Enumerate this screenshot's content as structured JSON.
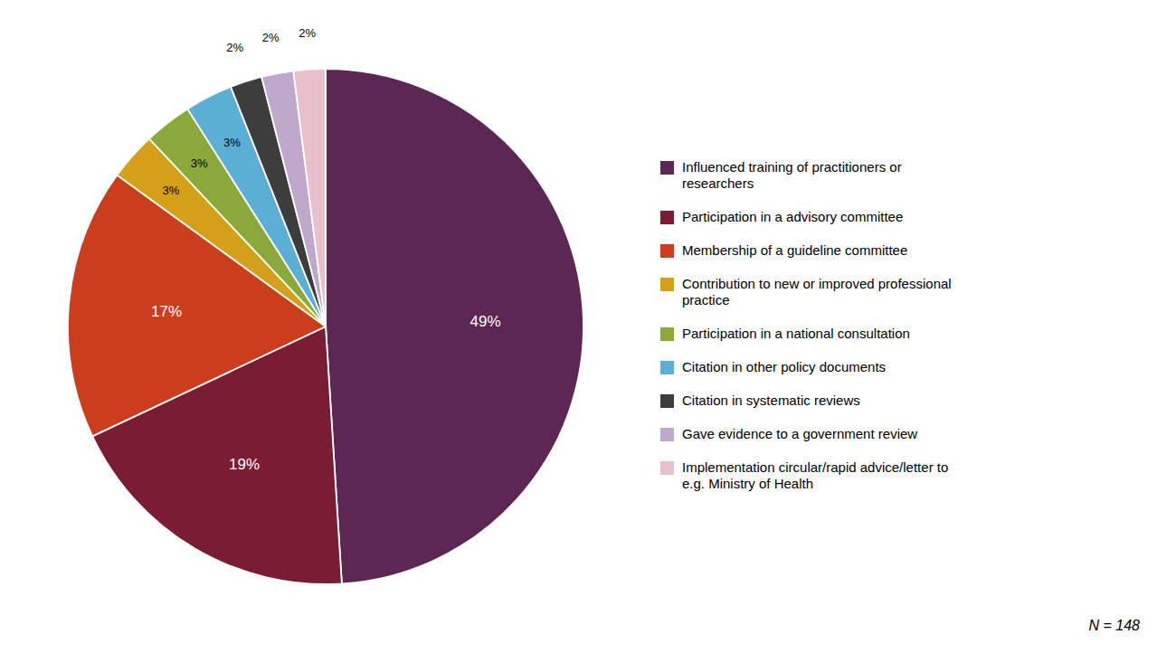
{
  "chart_data": {
    "type": "pie",
    "categories": [
      "Influenced training of practitioners or\nresearchers",
      "Participation in a advisory committee",
      "Membership of a guideline committee",
      "Contribution to new or improved professional\npractice",
      "Participation in a national consultation",
      "Citation in other policy documents",
      "Citation in systematic reviews",
      "Gave evidence to a government review",
      "Implementation circular/rapid advice/letter to\ne.g. Ministry of Health"
    ],
    "values": [
      49,
      19,
      17,
      3,
      3,
      3,
      2,
      2,
      2
    ],
    "value_labels": [
      "49%",
      "19%",
      "17%",
      "3%",
      "3%",
      "3%",
      "2%",
      "2%",
      "2%"
    ],
    "data_labels": true,
    "colors": [
      "#5C2752",
      "#7B1C35",
      "#CC3D1C",
      "#D4A017",
      "#8BA83A",
      "#5BAED4",
      "#3D3D3D",
      "#C0A8CC",
      "#E8C0CC"
    ],
    "legend": "right",
    "annotations": [
      "N = 148"
    ]
  }
}
